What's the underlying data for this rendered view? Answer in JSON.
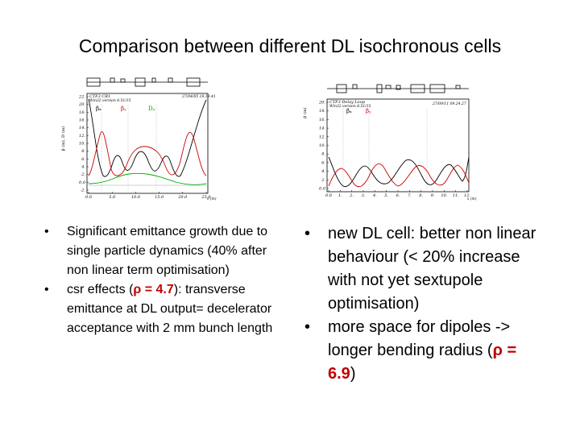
{
  "slide": {
    "title": "Comparison between different DL isochronous cells"
  },
  "left_plot": {
    "header_line1": "CTF3 CR1",
    "header_line2": "Win32 version 8.51/15",
    "timestamp": "27/04/05  18.19.41",
    "y_axis_label": "β (m), D (m)",
    "x_axis_label": "s (m)",
    "beta_x_label": "βₓ",
    "beta_y_label": "βᵧ",
    "dx_label": "Dₓ",
    "y_ticks": [
      "22.",
      "20.",
      "18.",
      "16.",
      "14.",
      "12.",
      "10.",
      "8.",
      "6.",
      "4.",
      "2.",
      "0.0",
      "-2."
    ],
    "x_ticks": [
      "0.0",
      "5.0",
      "10.0",
      "15.0",
      "20.0",
      "25.0"
    ]
  },
  "right_plot": {
    "header_line1": "CTF3 Delay Loop",
    "header_line2": "Win32 version 8.51/15",
    "timestamp": "27/09/11  09.24.27",
    "y_axis_label": "β (m)",
    "x_axis_label": "s (m)",
    "beta_x_label": "βₓ",
    "beta_y_label": "βᵧ",
    "y_ticks": [
      "20.",
      "18.",
      "16.",
      "14.",
      "12.",
      "10.",
      "8.",
      "6.",
      "4.",
      "2.",
      "0.0"
    ],
    "x_ticks": [
      "0.0",
      "1.",
      "2.",
      "3.",
      "4.",
      "5.",
      "6.",
      "7.",
      "8.",
      "9.",
      "10.",
      "11.",
      "12."
    ]
  },
  "left_column": {
    "bullet1": "Significant emittance growth due to single particle dynamics (40% after non linear term optimisation)",
    "bullet2_prefix": "csr effects  (",
    "bullet2_rho": "ρ = 4.7",
    "bullet2_suffix": "): transverse emittance at DL output= decelerator acceptance with 2 mm bunch length"
  },
  "right_column": {
    "bullet1": "new DL cell: better non linear behaviour (< 20% increase with not yet sextupole optimisation)",
    "bullet2_prefix": "more space for dipoles -> longer bending radius (",
    "bullet2_rho": "ρ = 6.9",
    "bullet2_suffix": ")"
  },
  "colors": {
    "beta_x": "#000000",
    "beta_y": "#cc0000",
    "dispersion": "#00aa00"
  }
}
